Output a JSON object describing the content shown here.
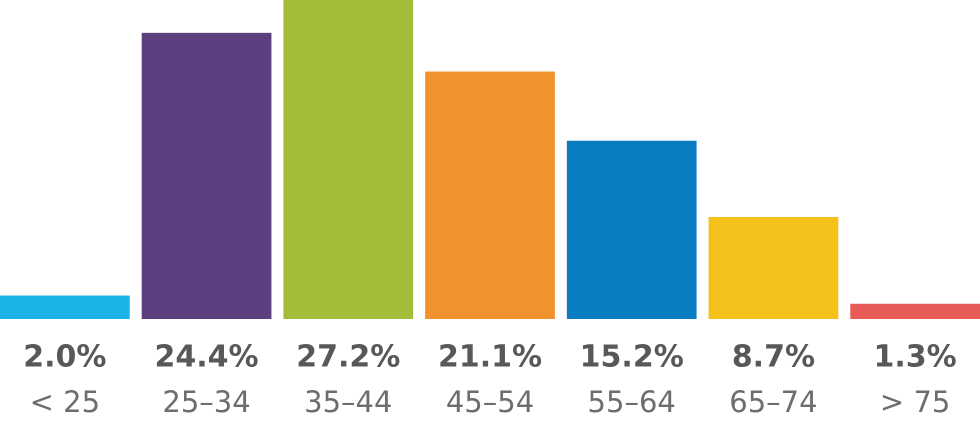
{
  "chart_data": {
    "type": "bar",
    "categories": [
      "< 25",
      "25–34",
      "35–44",
      "45–54",
      "55–64",
      "65–74",
      "> 75"
    ],
    "values": [
      2.0,
      24.4,
      27.2,
      21.1,
      15.2,
      8.7,
      1.3
    ],
    "value_labels": [
      "2.0%",
      "24.4%",
      "27.2%",
      "21.1%",
      "15.2%",
      "8.7%",
      "1.3%"
    ],
    "colors": [
      "#1bb3e6",
      "#5b3f7e",
      "#a3bd3a",
      "#f2922f",
      "#0a7dc2",
      "#f4c11b",
      "#e85a55"
    ]
  }
}
